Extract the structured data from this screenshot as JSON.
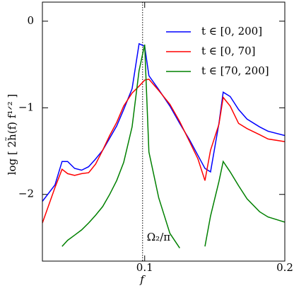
{
  "chart_data": {
    "type": "line",
    "x_label": "f",
    "y_label": "log [ 2h̃(f) f¹ᐟ² ]",
    "x": [
      0.027,
      0.036,
      0.041,
      0.045,
      0.05,
      0.055,
      0.06,
      0.065,
      0.07,
      0.075,
      0.08,
      0.085,
      0.091,
      0.096,
      0.1,
      0.103,
      0.11,
      0.118,
      0.125,
      0.132,
      0.138,
      0.143,
      0.147,
      0.153,
      0.156,
      0.161,
      0.167,
      0.173,
      0.182,
      0.188,
      0.2
    ],
    "series": [
      {
        "name": "t ∈ [0, 200]",
        "color": "#0000ff",
        "values": [
          -2.08,
          -1.89,
          -1.62,
          -1.62,
          -1.7,
          -1.72,
          -1.68,
          -1.59,
          -1.49,
          -1.35,
          -1.21,
          -1.02,
          -0.78,
          -0.26,
          -0.29,
          -0.63,
          -0.79,
          -0.98,
          -1.18,
          -1.37,
          -1.55,
          -1.7,
          -1.74,
          -1.18,
          -0.82,
          -0.87,
          -1.02,
          -1.13,
          -1.22,
          -1.27,
          -1.32
        ]
      },
      {
        "name": "t ∈ [0, 70]",
        "color": "#ff0000",
        "values": [
          -2.33,
          -1.92,
          -1.71,
          -1.76,
          -1.78,
          -1.76,
          -1.75,
          -1.65,
          -1.49,
          -1.32,
          -1.17,
          -0.98,
          -0.83,
          -0.75,
          -0.68,
          -0.67,
          -0.8,
          -0.96,
          -1.16,
          -1.39,
          -1.59,
          -1.84,
          -1.49,
          -1.19,
          -0.88,
          -0.98,
          -1.18,
          -1.24,
          -1.31,
          -1.36,
          -1.39
        ]
      },
      {
        "name": "t ∈ [70, 200]",
        "color": "#008000",
        "values": [
          null,
          null,
          -2.6,
          -2.53,
          -2.47,
          -2.41,
          -2.33,
          -2.24,
          -2.14,
          -2.0,
          -1.84,
          -1.63,
          -1.22,
          -0.57,
          -0.27,
          -1.51,
          -2.04,
          -2.45,
          -2.62,
          null,
          null,
          -2.6,
          -2.25,
          -1.85,
          -1.62,
          -1.74,
          -1.9,
          -2.05,
          -2.2,
          -2.26,
          -2.32
        ]
      }
    ],
    "xlim": [
      0.027,
      0.2
    ],
    "ylim": [
      -2.77,
      0.22
    ],
    "xticks": [
      0.1,
      0.2
    ],
    "yticks": [
      0,
      {
        "value": -1,
        "label": "−1"
      },
      {
        "value": -2,
        "label": "−2"
      }
    ],
    "vline": 0.0985,
    "vline_label": "Ω₂/π",
    "legend": "upper right"
  }
}
